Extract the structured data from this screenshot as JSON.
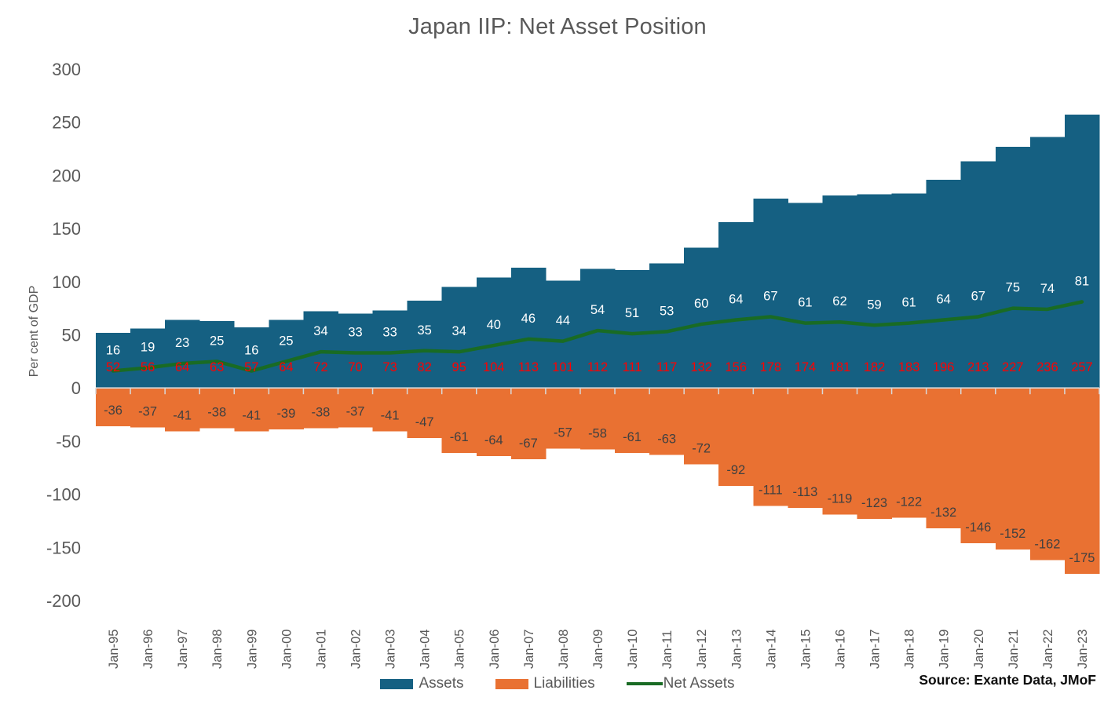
{
  "title": "Japan IIP: Net Asset Position",
  "source": "Source: Exante Data, JMoF",
  "colors": {
    "assets": "#156082",
    "liabilities": "#E97132",
    "net_assets": "#196B24",
    "assets_label": "#FF0000",
    "liabilities_label": "#404040",
    "net_label": "#FFFFFF",
    "axis_text": "#595959",
    "axis_line": "#D9D9D9"
  },
  "chart_data": {
    "type": "bar+line",
    "title": "Japan IIP: Net Asset Position",
    "ylabel": "Per cent of GDP",
    "xlabel": "",
    "ylim": [
      -200,
      300
    ],
    "yticks": [
      300,
      250,
      200,
      150,
      100,
      50,
      0,
      -50,
      -100,
      -150,
      -200
    ],
    "grid": false,
    "legend_position": "bottom",
    "categories": [
      "Jan-95",
      "Jan-96",
      "Jan-97",
      "Jan-98",
      "Jan-99",
      "Jan-00",
      "Jan-01",
      "Jan-02",
      "Jan-03",
      "Jan-04",
      "Jan-05",
      "Jan-06",
      "Jan-07",
      "Jan-08",
      "Jan-09",
      "Jan-10",
      "Jan-11",
      "Jan-12",
      "Jan-13",
      "Jan-14",
      "Jan-15",
      "Jan-16",
      "Jan-17",
      "Jan-18",
      "Jan-19",
      "Jan-20",
      "Jan-21",
      "Jan-22",
      "Jan-23"
    ],
    "series": [
      {
        "name": "Assets",
        "type": "bar",
        "color": "#156082",
        "label_color": "#FF0000",
        "label_position": "inside-base",
        "values": [
          52,
          56,
          64,
          63,
          57,
          64,
          72,
          70,
          73,
          82,
          95,
          104,
          113,
          101,
          112,
          111,
          117,
          132,
          156,
          178,
          174,
          181,
          182,
          183,
          196,
          213,
          227,
          236,
          257
        ]
      },
      {
        "name": "Liabilities",
        "type": "bar",
        "color": "#E97132",
        "label_color": "#404040",
        "label_position": "inside-end",
        "values": [
          -36,
          -37,
          -41,
          -38,
          -41,
          -39,
          -38,
          -37,
          -41,
          -47,
          -61,
          -64,
          -67,
          -57,
          -58,
          -61,
          -63,
          -72,
          -92,
          -111,
          -113,
          -119,
          -123,
          -122,
          -132,
          -146,
          -152,
          -162,
          -175
        ]
      },
      {
        "name": "Net Assets",
        "type": "line",
        "color": "#196B24",
        "label_color": "#FFFFFF",
        "label_position": "above",
        "values": [
          16,
          19,
          23,
          25,
          16,
          25,
          34,
          33,
          33,
          35,
          34,
          40,
          46,
          44,
          54,
          51,
          53,
          60,
          64,
          67,
          61,
          62,
          59,
          61,
          64,
          67,
          75,
          74,
          81
        ]
      }
    ]
  }
}
